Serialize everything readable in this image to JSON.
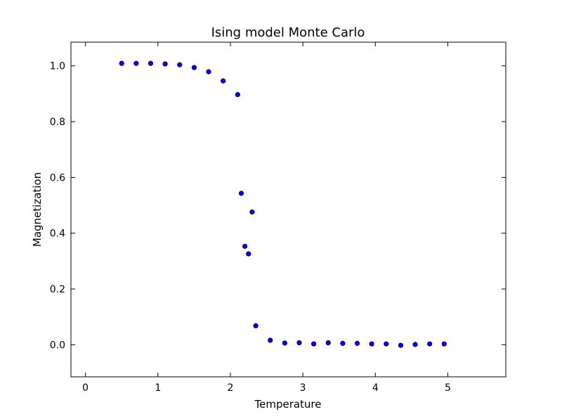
{
  "chart_data": {
    "type": "scatter",
    "title": "Ising model Monte Carlo",
    "xlabel": "Temperature",
    "ylabel": "Magnetization",
    "xlim": [
      -0.2,
      5.8
    ],
    "ylim": [
      -0.115,
      1.085
    ],
    "xticks": [
      0,
      1,
      2,
      3,
      4,
      5
    ],
    "xtick_labels": [
      "0",
      "1",
      "2",
      "3",
      "4",
      "5"
    ],
    "yticks": [
      0.0,
      0.2,
      0.4,
      0.6,
      0.8,
      1.0
    ],
    "ytick_labels": [
      "0.0",
      "0.2",
      "0.4",
      "0.6",
      "0.8",
      "1.0"
    ],
    "grid": false,
    "legend": false,
    "marker_color": "#0000ff",
    "marker_edge_color": "#000000",
    "series": [
      {
        "x": [
          0.5,
          0.7,
          0.9,
          1.1,
          1.3,
          1.5,
          1.7,
          1.9,
          2.1,
          2.15,
          2.2,
          2.25,
          2.3,
          2.35,
          2.55,
          2.75,
          2.95,
          3.15,
          3.35,
          3.55,
          3.75,
          3.95,
          4.15,
          4.35,
          4.55,
          4.75,
          4.95
        ],
        "y": [
          1.009,
          1.009,
          1.009,
          1.007,
          1.004,
          0.994,
          0.979,
          0.946,
          0.897,
          0.543,
          0.353,
          0.326,
          0.476,
          0.068,
          0.016,
          0.006,
          0.007,
          0.003,
          0.007,
          0.005,
          0.005,
          0.003,
          0.003,
          -0.002,
          0.001,
          0.003,
          0.003
        ]
      }
    ]
  }
}
